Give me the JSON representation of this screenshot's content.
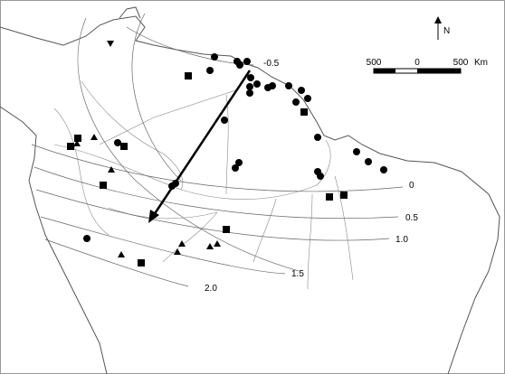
{
  "map": {
    "north_label": "N",
    "scale_bar": {
      "labels": [
        "500",
        "0",
        "500"
      ],
      "unit": "Km"
    },
    "contour_labels": [
      "-0.5",
      "0",
      "0.5",
      "1.0",
      "1.5",
      "2.0"
    ]
  }
}
